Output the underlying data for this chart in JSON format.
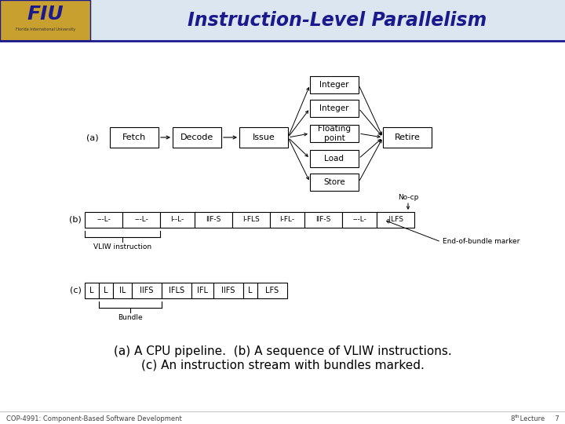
{
  "title": "Instruction-Level Parallelism",
  "title_color": "#1a1a8c",
  "bg_color": "#f0f0f0",
  "header_bg": "#e8eef8",
  "border_color": "#1a1a8c",
  "label_a": "(a)",
  "label_b": "(b)",
  "label_c": "(c)",
  "pipeline_boxes": [
    "Fetch",
    "Decode",
    "Issue",
    "Retire"
  ],
  "functional_units": [
    "Integer",
    "Integer",
    "Floating\npoint",
    "Load",
    "Store"
  ],
  "vliw_cells_b": [
    "---L-",
    "---L-",
    "I--L-",
    "IIF-S",
    "I-FLS",
    "I-FL-",
    "IIF-S",
    "---L-",
    "-|LFS"
  ],
  "vliw_cells_c": [
    "L",
    "L",
    "IL",
    "IIFS",
    "IFLS",
    "IFL",
    "IIFS",
    "L",
    "LFS"
  ],
  "footer_left": "COP-4991: Component-Based Software Development",
  "footer_right_main": "8",
  "footer_right_sup": "th",
  "footer_right_end": " Lecture     7",
  "caption_line1": "(a) A CPU pipeline.  (b) A sequence of VLIW instructions.",
  "caption_line2": "(c) An instruction stream with bundles marked.",
  "no_cp_label": "No-cp",
  "vliw_label": "VLIW instruction",
  "bundle_label": "Bundle",
  "end_bundle_label": "End-of-bundle marker"
}
